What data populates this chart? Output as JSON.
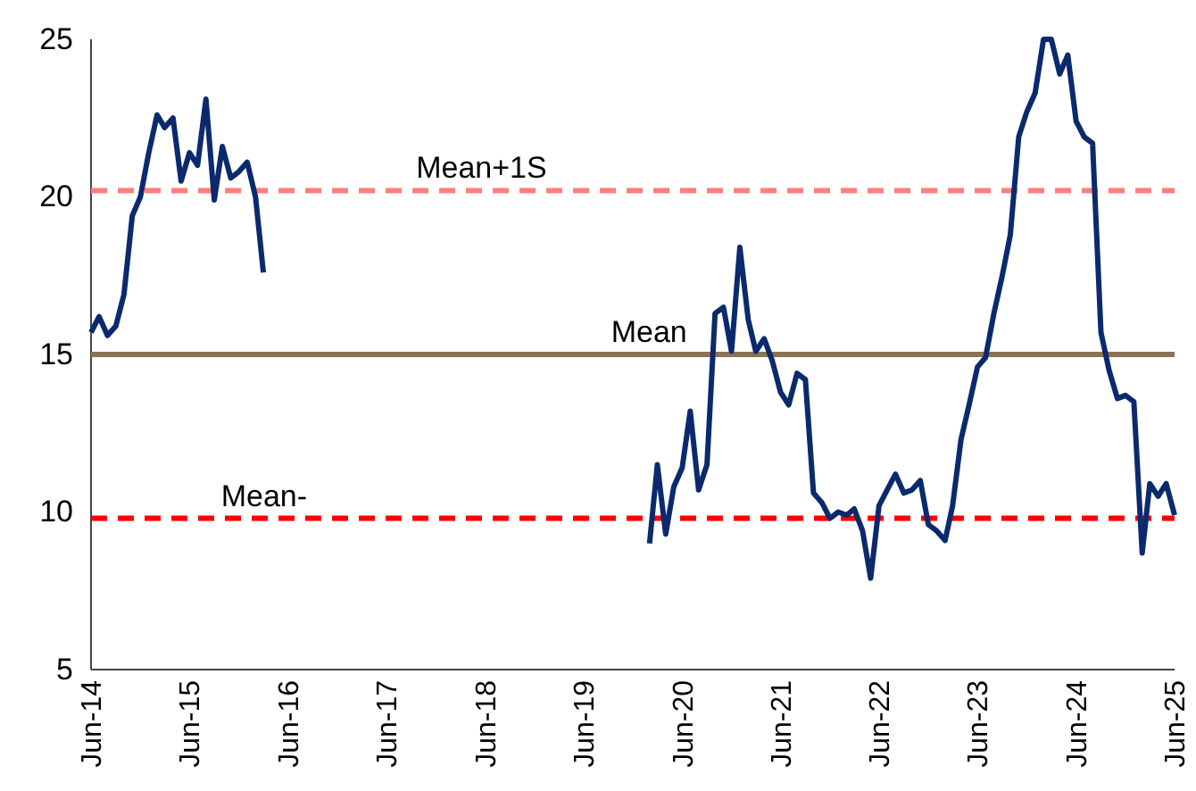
{
  "chart_data": {
    "type": "line",
    "x": [
      "2014-06",
      "2014-07",
      "2014-08",
      "2014-09",
      "2014-10",
      "2014-11",
      "2014-12",
      "2015-01",
      "2015-02",
      "2015-03",
      "2015-04",
      "2015-05",
      "2015-06",
      "2015-07",
      "2015-08",
      "2015-09",
      "2015-10",
      "2015-11",
      "2015-12",
      "2016-01",
      "2016-02",
      "2016-03",
      "2018-01",
      "2020-02",
      "2020-03",
      "2020-04",
      "2020-05",
      "2020-06",
      "2020-07",
      "2020-08",
      "2020-09",
      "2020-10",
      "2020-11",
      "2020-12",
      "2021-01",
      "2021-02",
      "2021-03",
      "2021-04",
      "2021-05",
      "2021-06",
      "2021-07",
      "2021-08",
      "2021-09",
      "2021-10",
      "2021-11",
      "2021-12",
      "2022-01",
      "2022-02",
      "2022-03",
      "2022-04",
      "2022-05",
      "2022-06",
      "2022-07",
      "2022-08",
      "2022-09",
      "2022-10",
      "2022-11",
      "2022-12",
      "2023-01",
      "2023-02",
      "2023-03",
      "2023-04",
      "2023-05",
      "2023-06",
      "2023-07",
      "2023-08",
      "2023-09",
      "2023-10",
      "2023-11",
      "2023-12",
      "2024-01",
      "2024-02",
      "2024-03",
      "2024-04",
      "2024-05",
      "2024-06",
      "2024-07",
      "2024-08",
      "2024-09",
      "2024-10",
      "2024-11",
      "2024-12",
      "2025-01",
      "2025-02",
      "2025-03",
      "2025-04",
      "2025-05",
      "2025-06"
    ],
    "series": [
      {
        "color": "#0b2a6e",
        "values": [
          15.7,
          16.2,
          15.6,
          15.9,
          16.9,
          19.4,
          20.0,
          21.4,
          22.6,
          22.2,
          22.5,
          20.5,
          21.4,
          21.0,
          23.1,
          19.9,
          21.6,
          20.6,
          20.8,
          21.1,
          20.0,
          17.6,
          null,
          9.0,
          11.5,
          9.3,
          10.8,
          11.4,
          13.2,
          10.7,
          11.5,
          16.3,
          16.5,
          15.1,
          18.4,
          16.1,
          15.1,
          15.5,
          14.8,
          13.8,
          13.4,
          14.4,
          14.2,
          10.6,
          10.3,
          9.8,
          10.0,
          9.9,
          10.1,
          9.4,
          7.9,
          10.2,
          10.7,
          11.2,
          10.6,
          10.7,
          11.0,
          9.6,
          9.4,
          9.1,
          10.2,
          12.3,
          13.4,
          14.6,
          14.9,
          16.3,
          17.5,
          18.8,
          21.9,
          22.7,
          23.3,
          25,
          25,
          23.9,
          24.5,
          22.4,
          21.9,
          21.7,
          15.7,
          14.5,
          13.6,
          13.7,
          13.5,
          8.7,
          10.9,
          10.5,
          10.9,
          9.9
        ]
      }
    ],
    "xlim": [
      "2014-06",
      "2025-06"
    ],
    "xticks": [
      {
        "value": "2014-06",
        "label": "Jun-14"
      },
      {
        "value": "2015-06",
        "label": "Jun-15"
      },
      {
        "value": "2016-06",
        "label": "Jun-16"
      },
      {
        "value": "2017-06",
        "label": "Jun-17"
      },
      {
        "value": "2018-06",
        "label": "Jun-18"
      },
      {
        "value": "2019-06",
        "label": "Jun-19"
      },
      {
        "value": "2020-06",
        "label": "Jun-20"
      },
      {
        "value": "2021-06",
        "label": "Jun-21"
      },
      {
        "value": "2022-06",
        "label": "Jun-22"
      },
      {
        "value": "2023-06",
        "label": "Jun-23"
      },
      {
        "value": "2024-06",
        "label": "Jun-24"
      },
      {
        "value": "2025-06",
        "label": "Jun-25"
      }
    ],
    "ylim": [
      5,
      25
    ],
    "yticks": [
      5,
      10,
      15,
      20,
      25
    ],
    "ref_lines": [
      {
        "axis": "y",
        "value": 20.2,
        "label": "Mean+1S",
        "color": "#ff7f7f",
        "line_style": "dashed"
      },
      {
        "axis": "y",
        "value": 15,
        "label": "Mean",
        "color": "#8b7355",
        "line_style": "solid"
      },
      {
        "axis": "y",
        "value": 9.8,
        "label": "Mean-",
        "color": "#ff0000",
        "line_style": "dashed"
      }
    ],
    "grid": false,
    "marker": "none",
    "line_style": "solid"
  }
}
